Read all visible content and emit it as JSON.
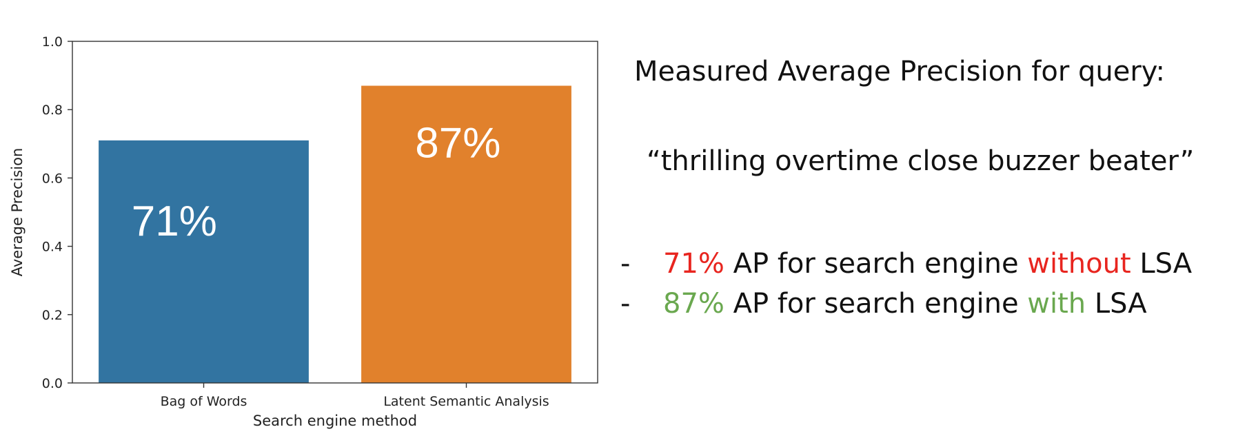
{
  "chart_data": {
    "type": "bar",
    "categories": [
      "Bag of Words",
      "Latent Semantic Analysis"
    ],
    "values": [
      0.71,
      0.87
    ],
    "data_labels": [
      "71%",
      "87%"
    ],
    "xlabel": "Search engine method",
    "ylabel": "Average Precision",
    "ylim": [
      0,
      1.0
    ],
    "yticks": [
      "0.0",
      "0.2",
      "0.4",
      "0.6",
      "0.8",
      "1.0"
    ],
    "colors": [
      "#3274a1",
      "#e1812c"
    ],
    "grid": false
  },
  "panel": {
    "heading": "Measured Average Precision for query:",
    "query": "“thrilling overtime close buzzer beater”",
    "bullets": [
      {
        "dash": "-",
        "value": "71%",
        "value_color": "#e8251f",
        "mid": " AP for search engine ",
        "keyword": "without",
        "keyword_color": "#e8251f",
        "tail": " LSA"
      },
      {
        "dash": "-",
        "value": "87%",
        "value_color": "#6aa84f",
        "mid": " AP for search engine ",
        "keyword": "with",
        "keyword_color": "#6aa84f",
        "tail": " LSA"
      }
    ]
  }
}
